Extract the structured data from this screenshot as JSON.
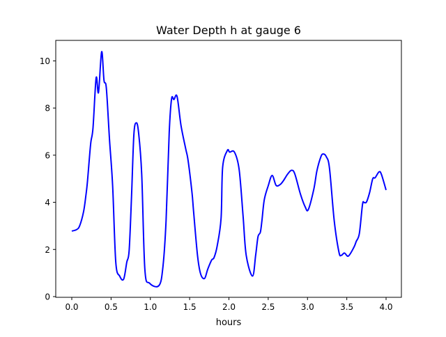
{
  "chart_data": {
    "type": "line",
    "title": "Water Depth h at gauge 6",
    "xlabel": "hours",
    "ylabel": "",
    "xlim": [
      -0.204,
      4.195
    ],
    "ylim": [
      -0.03,
      10.87
    ],
    "xticks": [
      0.0,
      0.5,
      1.0,
      1.5,
      2.0,
      2.5,
      3.0,
      3.5,
      4.0
    ],
    "xtick_labels": [
      "0.0",
      "0.5",
      "1.0",
      "1.5",
      "2.0",
      "2.5",
      "3.0",
      "3.5",
      "4.0"
    ],
    "yticks": [
      0,
      2,
      4,
      6,
      8,
      10
    ],
    "ytick_labels": [
      "0",
      "2",
      "4",
      "6",
      "8",
      "10"
    ],
    "grid": false,
    "series": [
      {
        "name": "h",
        "color": "#0000ff",
        "x": [
          0.0,
          0.06,
          0.1,
          0.15,
          0.18,
          0.2,
          0.24,
          0.27,
          0.31,
          0.34,
          0.38,
          0.41,
          0.44,
          0.48,
          0.52,
          0.56,
          0.61,
          0.66,
          0.7,
          0.73,
          0.76,
          0.79,
          0.82,
          0.85,
          0.89,
          0.93,
          0.99,
          1.11,
          1.16,
          1.2,
          1.24,
          1.27,
          1.3,
          1.34,
          1.39,
          1.45,
          1.48,
          1.53,
          1.55,
          1.6,
          1.64,
          1.69,
          1.73,
          1.78,
          1.81,
          1.85,
          1.9,
          1.92,
          1.98,
          2.01,
          2.07,
          2.13,
          2.18,
          2.22,
          2.3,
          2.34,
          2.37,
          2.4,
          2.42,
          2.45,
          2.5,
          2.55,
          2.6,
          2.65,
          2.69,
          2.75,
          2.8,
          2.84,
          2.91,
          2.97,
          3.01,
          3.08,
          3.12,
          3.17,
          3.2,
          3.24,
          3.28,
          3.34,
          3.4,
          3.43,
          3.47,
          3.52,
          3.59,
          3.62,
          3.66,
          3.7,
          3.72,
          3.75,
          3.79,
          3.83,
          3.86,
          3.91,
          3.94,
          4.0
        ],
        "y": [
          2.78,
          2.84,
          3.0,
          3.6,
          4.3,
          4.9,
          6.47,
          7.15,
          9.28,
          8.66,
          10.39,
          9.18,
          8.84,
          6.67,
          4.7,
          1.46,
          0.87,
          0.74,
          1.46,
          1.95,
          4.21,
          6.86,
          7.37,
          6.96,
          5.19,
          1.16,
          0.57,
          0.47,
          1.26,
          3.22,
          6.96,
          8.39,
          8.36,
          8.49,
          7.26,
          6.27,
          5.78,
          4.41,
          3.62,
          1.75,
          0.96,
          0.77,
          1.16,
          1.55,
          1.65,
          2.14,
          3.32,
          5.49,
          6.2,
          6.13,
          6.13,
          5.39,
          3.42,
          1.75,
          0.87,
          1.75,
          2.54,
          2.73,
          3.22,
          4.11,
          4.7,
          5.14,
          4.72,
          4.75,
          4.9,
          5.21,
          5.36,
          5.19,
          4.35,
          3.81,
          3.69,
          4.55,
          5.34,
          5.93,
          6.05,
          5.93,
          5.44,
          3.22,
          1.89,
          1.75,
          1.85,
          1.72,
          2.09,
          2.34,
          2.68,
          3.91,
          3.99,
          4.01,
          4.41,
          5.0,
          5.04,
          5.29,
          5.19,
          4.52
        ]
      }
    ]
  }
}
